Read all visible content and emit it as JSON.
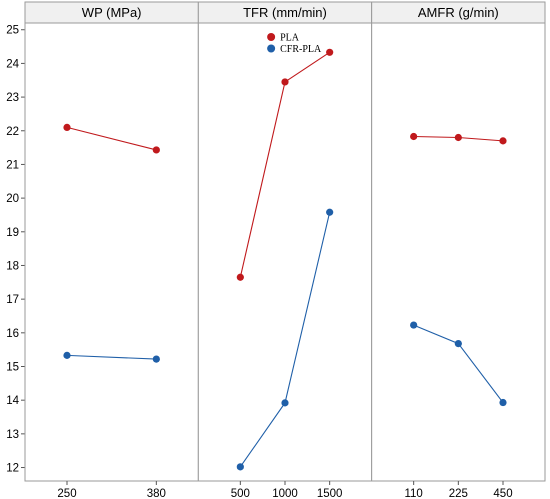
{
  "chart_data": {
    "type": "line",
    "title": "",
    "ylim": [
      11.6,
      25.2
    ],
    "y_ticks": [
      12,
      13,
      14,
      15,
      16,
      17,
      18,
      19,
      20,
      21,
      22,
      23,
      24,
      25
    ],
    "legend": {
      "position": "top-center",
      "entries": [
        {
          "name": "PLA",
          "color": "#c0191c"
        },
        {
          "name": "CFR-PLA",
          "color": "#1f5fa8"
        }
      ]
    },
    "grid": false,
    "panels": [
      {
        "title": "WP (MPa)",
        "categories": [
          "250",
          "380"
        ],
        "series": [
          {
            "name": "PLA",
            "color": "#c0191c",
            "values": [
              22.1,
              21.43
            ]
          },
          {
            "name": "CFR-PLA",
            "color": "#1f5fa8",
            "values": [
              15.33,
              15.22
            ]
          }
        ]
      },
      {
        "title": "TFR (mm/min)",
        "categories": [
          "500",
          "1000",
          "1500"
        ],
        "series": [
          {
            "name": "PLA",
            "color": "#c0191c",
            "values": [
              17.65,
              23.45,
              24.33
            ]
          },
          {
            "name": "CFR-PLA",
            "color": "#1f5fa8",
            "values": [
              12.02,
              13.92,
              19.58
            ]
          }
        ]
      },
      {
        "title": "AMFR (g/min)",
        "categories": [
          "110",
          "225",
          "450"
        ],
        "series": [
          {
            "name": "PLA",
            "color": "#c0191c",
            "values": [
              21.83,
              21.8,
              21.7
            ]
          },
          {
            "name": "CFR-PLA",
            "color": "#1f5fa8",
            "values": [
              16.23,
              15.68,
              13.93
            ]
          }
        ]
      }
    ]
  }
}
